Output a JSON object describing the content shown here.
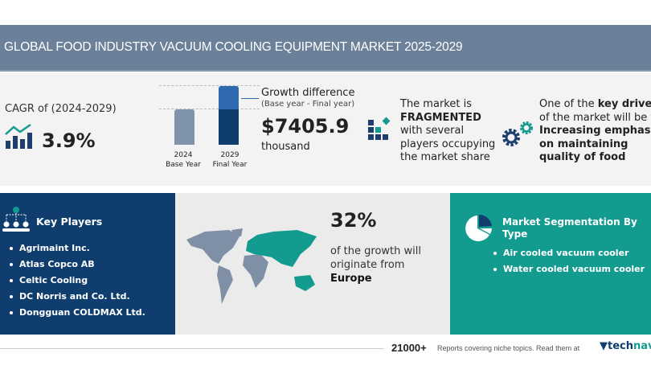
{
  "title": "GLOBAL FOOD INDUSTRY VACUUM COOLING EQUIPMENT MARKET 2025-2029",
  "cagr": {
    "label": "CAGR of (2024-2029)",
    "value": "3.9%",
    "icon": "growth-chart-icon"
  },
  "growth": {
    "bars": [
      {
        "year": "2024",
        "label": "Base Year"
      },
      {
        "year": "2029",
        "label": "Final Year"
      }
    ],
    "title": "Growth difference",
    "subtitle": "(Base year - Final year)",
    "value": "$7405.9",
    "unit": "thousand"
  },
  "market": {
    "line1": "The market is",
    "bold": "FRAGMENTED",
    "line3": "with several",
    "line4": "players occupying",
    "line5": "the market share",
    "icon": "blocks-icon"
  },
  "drivers": {
    "pre": "One of the ",
    "bold1": "key drivers",
    "line2": "of the market will be the",
    "b2": "Increasing emphasis",
    "b3": "on maintaining",
    "b4": "quality of food",
    "icon": "gears-icon"
  },
  "key_players": {
    "title": "Key Players",
    "items": [
      "Agrimaint Inc.",
      "Atlas Copco AB",
      "Celtic Cooling",
      "DC Norris and Co. Ltd.",
      "Dongguan COLDMAX Ltd."
    ]
  },
  "region": {
    "percent": "32%",
    "line1": "of the growth will",
    "line2": "originate from",
    "region": "Europe"
  },
  "segmentation": {
    "title": "Market Segmentation By Type",
    "items": [
      "Air cooled vacuum cooler",
      "Water cooled vacuum cooler"
    ]
  },
  "footer": {
    "count": "21000+",
    "text": "Reports covering niche topics. Read them at",
    "brand1": "tech",
    "brand2": "navio"
  },
  "colors": {
    "navy": "#0f3e6e",
    "teal": "#139b8f",
    "title_bar": "#6b8099"
  }
}
